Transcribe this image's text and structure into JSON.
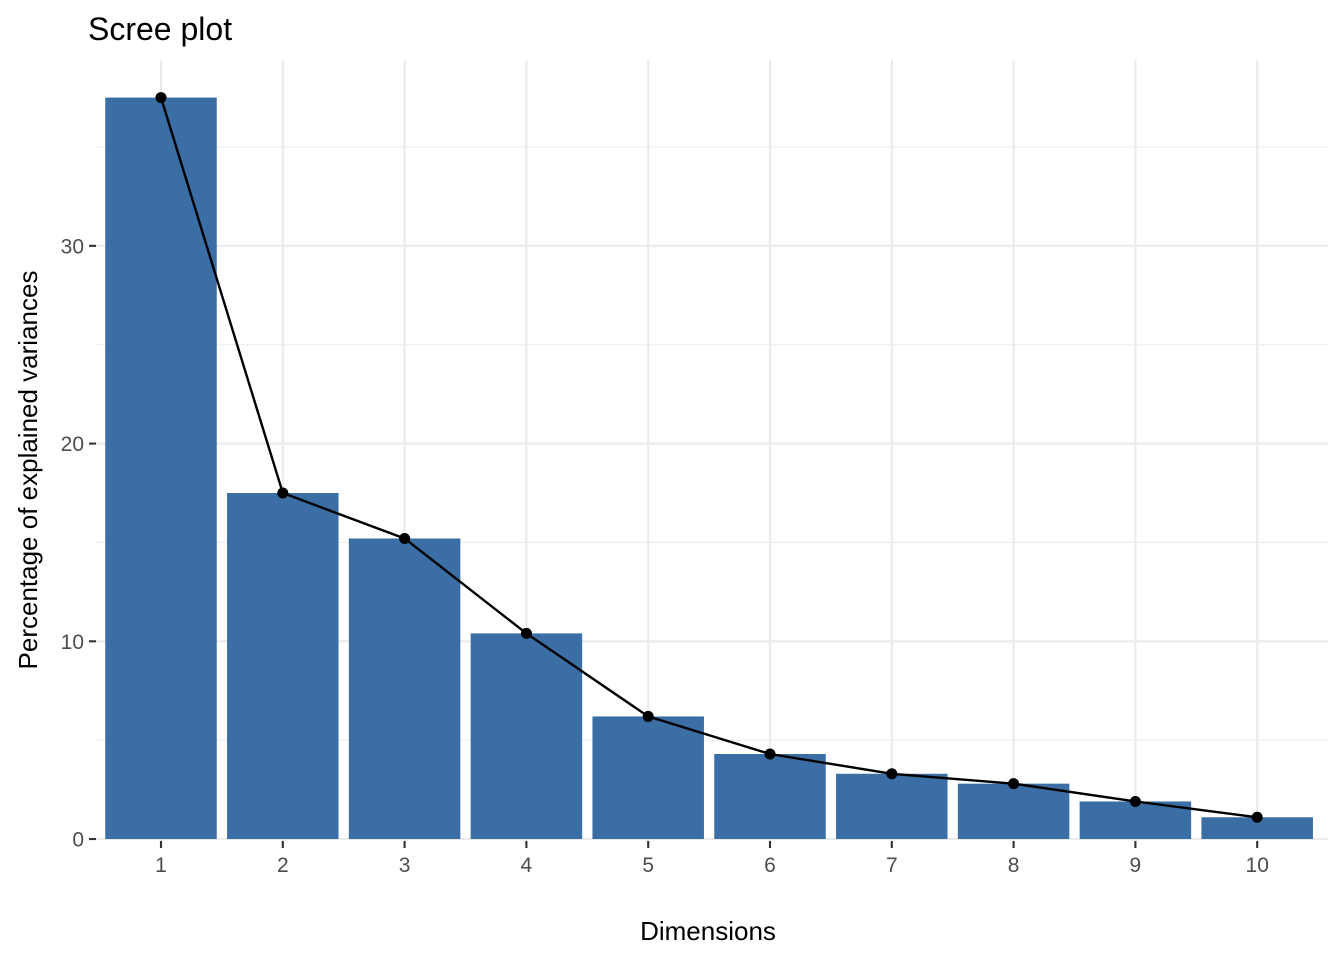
{
  "chart_data": {
    "type": "bar",
    "title": "Scree plot",
    "xlabel": "Dimensions",
    "ylabel": "Percentage of explained variances",
    "categories": [
      "1",
      "2",
      "3",
      "4",
      "5",
      "6",
      "7",
      "8",
      "9",
      "10"
    ],
    "values": [
      37.5,
      17.5,
      15.2,
      10.4,
      6.2,
      4.3,
      3.3,
      2.8,
      1.9,
      1.1
    ],
    "overlay": "line-with-points",
    "ylim": [
      -0.1,
      39.4
    ],
    "yticks": [
      0,
      10,
      20,
      30
    ],
    "ytick_labels": [
      "0",
      "10",
      "20",
      "30"
    ],
    "grid": true,
    "colors": {
      "bar": "#3a6ea5",
      "line": "#000000",
      "grid": "#ebebeb",
      "tick_text": "#4d4d4d"
    }
  }
}
